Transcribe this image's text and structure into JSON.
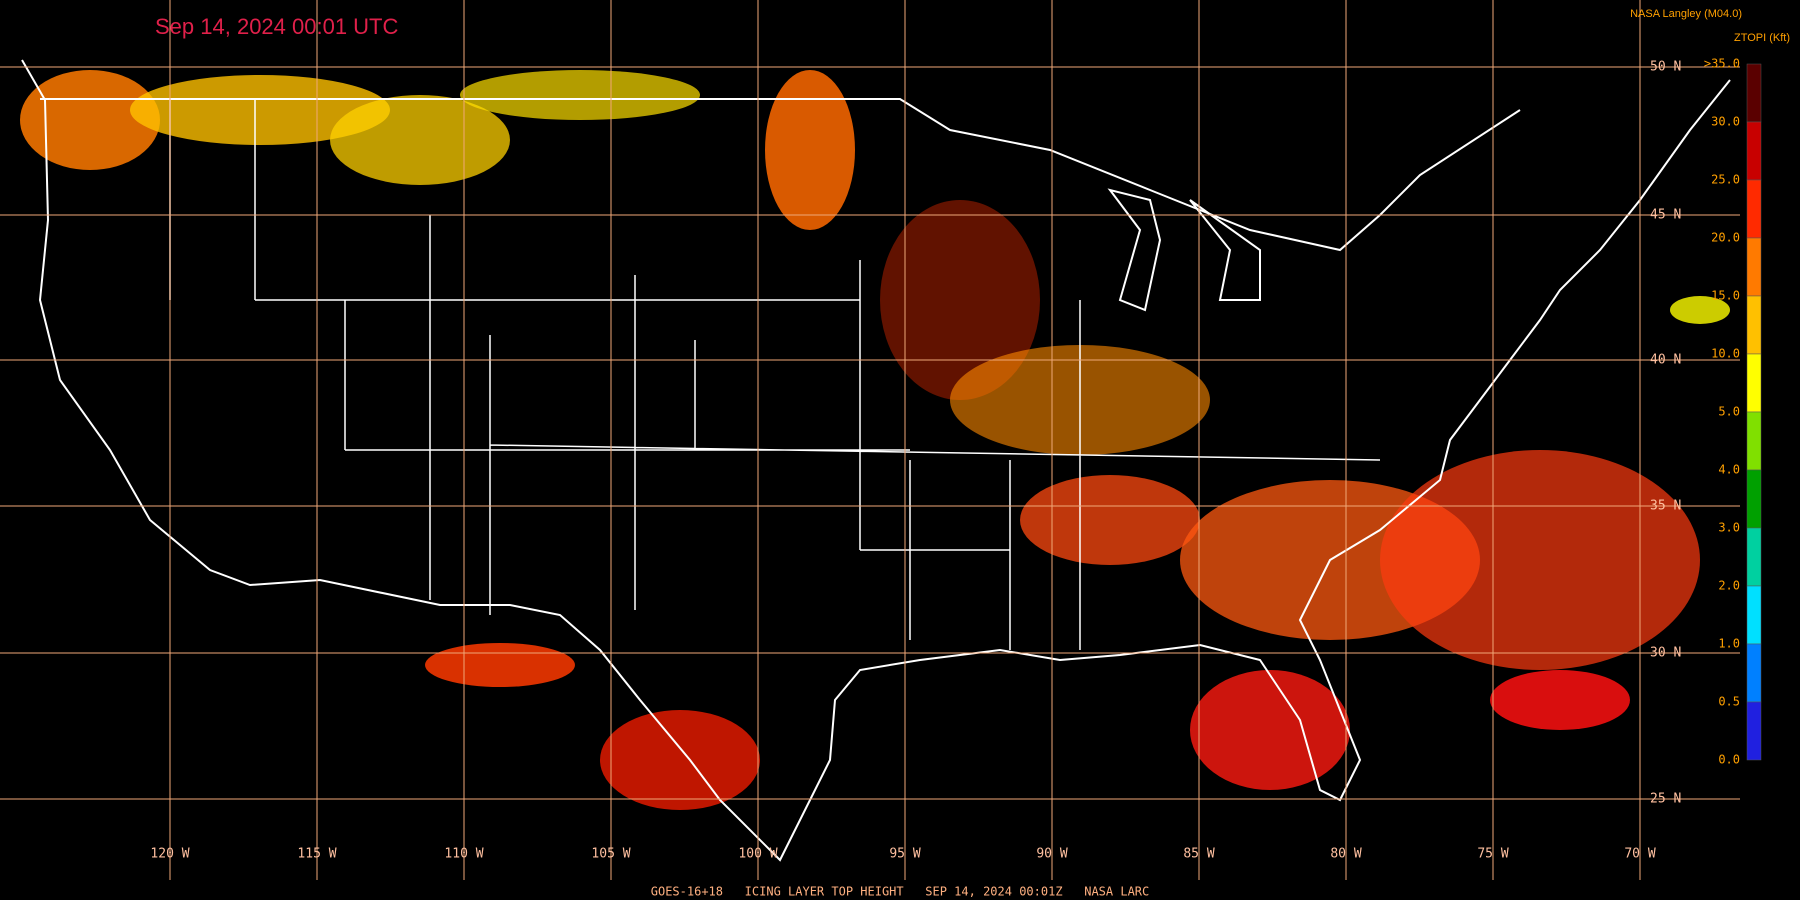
{
  "header": {
    "timestamp": "Sep 14, 2024 00:01 UTC",
    "credit": "NASA Langley (M04.0)",
    "units": "ZTOPI (Kft)"
  },
  "legend": [
    {
      "label": ">35.0",
      "color": "#5a0000"
    },
    {
      "label": "30.0",
      "color": "#c80000"
    },
    {
      "label": "25.0",
      "color": "#ff2a00"
    },
    {
      "label": "20.0",
      "color": "#ff7a00"
    },
    {
      "label": "15.0",
      "color": "#ffc000"
    },
    {
      "label": "10.0",
      "color": "#ffff00"
    },
    {
      "label": "5.0",
      "color": "#80e000"
    },
    {
      "label": "4.0",
      "color": "#00a000"
    },
    {
      "label": "3.0",
      "color": "#00d0a0"
    },
    {
      "label": "2.0",
      "color": "#00e0ff"
    },
    {
      "label": "1.0",
      "color": "#0080ff"
    },
    {
      "label": "0.5",
      "color": "#2020e0"
    },
    {
      "label": "0.0",
      "color": "#a040ff"
    }
  ],
  "lat_labels": [
    "50 N",
    "45 N",
    "40 N",
    "35 N",
    "30 N",
    "25 N"
  ],
  "lon_labels": [
    "120 W",
    "115 W",
    "110 W",
    "105 W",
    "100 W",
    "95 W",
    "90 W",
    "85 W",
    "80 W",
    "75 W",
    "70 W"
  ],
  "footer": "GOES-16+18   ICING LAYER TOP HEIGHT   SEP 14, 2024 00:01Z   NASA LARC"
}
